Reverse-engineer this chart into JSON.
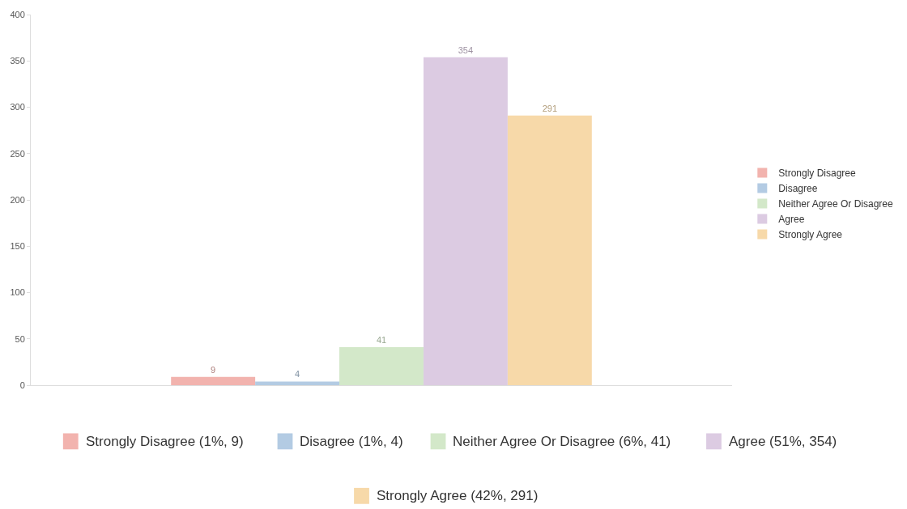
{
  "chart_data": {
    "type": "bar",
    "categories": [
      null
    ],
    "series": [
      {
        "name": "Strongly Disagree",
        "color": "#f2b3ae",
        "values": [
          9
        ]
      },
      {
        "name": "Disagree",
        "color": "#b3cbe3",
        "values": [
          4
        ]
      },
      {
        "name": "Neither Agree Or Disagree",
        "color": "#d3e8c9",
        "values": [
          41
        ]
      },
      {
        "name": "Agree",
        "color": "#dccbe2",
        "values": [
          354
        ]
      },
      {
        "name": "Strongly Agree",
        "color": "#f7d9a9",
        "values": [
          291
        ]
      }
    ],
    "ylim": [
      0,
      400
    ],
    "yticks": [
      0,
      50,
      100,
      150,
      200,
      250,
      300,
      350,
      400
    ],
    "data_labels": true,
    "grid": false,
    "legend": "right",
    "annotations": [
      "Strongly Disagree (1%, 9)",
      "Disagree (1%, 4)",
      "Neither Agree Or Disagree (6%, 41)",
      "Agree (51%, 354)",
      "Strongly Agree (42%, 291)"
    ]
  }
}
